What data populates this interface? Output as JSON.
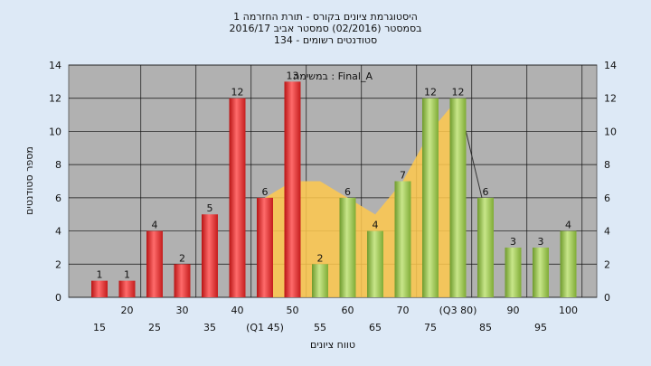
{
  "chart_data": {
    "type": "bar",
    "title_lines": [
      "היסטוגרמת ציונים בקורס - תורת החזרמה 1",
      "בסמסטר  (02/2016)  סמסטר אביב 2016/17",
      "סטודנטים רשומים - 134"
    ],
    "xlabel": "טווח ציונים",
    "ylabel": "מספר סטודנטים",
    "ylim": [
      0,
      14
    ],
    "yticks": [
      0,
      2,
      4,
      6,
      8,
      10,
      12,
      14
    ],
    "grid": true,
    "annotation": "במשימה : Final_A",
    "categories": [
      "15",
      "20",
      "25",
      "30",
      "35",
      "40",
      "(Q1 45)",
      "50",
      "55",
      "60",
      "65",
      "70",
      "75",
      "(Q3 80)",
      "85",
      "90",
      "95",
      "100"
    ],
    "values": [
      1,
      1,
      4,
      2,
      5,
      12,
      6,
      13,
      2,
      6,
      4,
      7,
      12,
      12,
      6,
      3,
      3,
      4
    ],
    "bar_colors": [
      "#e63333",
      "#e63333",
      "#e63333",
      "#e63333",
      "#e63333",
      "#e63333",
      "#e63333",
      "#e63333",
      "#9cc855",
      "#9cc855",
      "#9cc855",
      "#9cc855",
      "#9cc855",
      "#9cc855",
      "#9cc855",
      "#9cc855",
      "#9cc855",
      "#9cc855"
    ],
    "fail_color": "#e63333",
    "pass_color": "#9cc855",
    "area_color": "#ffc94d",
    "area_series": [
      0,
      0,
      0,
      0,
      0,
      0,
      6,
      7,
      7,
      6,
      5,
      7,
      10,
      12,
      0,
      0,
      0,
      0
    ]
  }
}
